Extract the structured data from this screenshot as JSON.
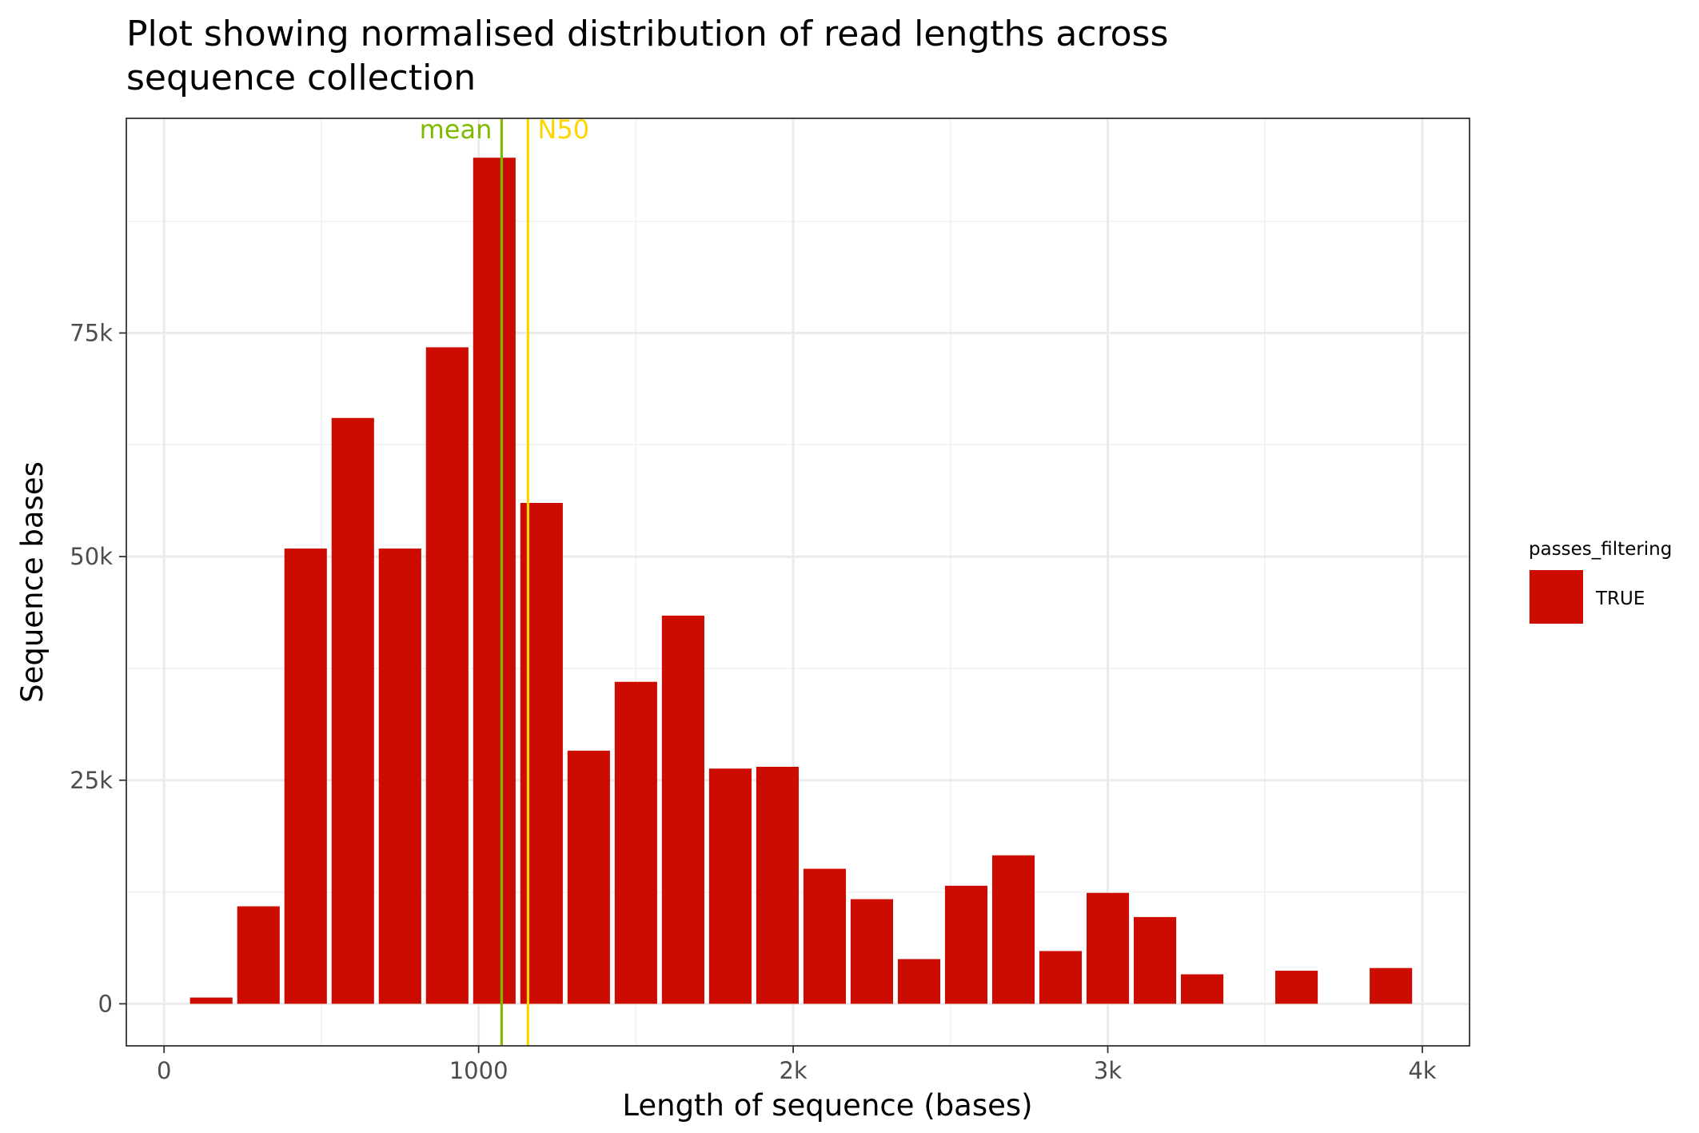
{
  "chart_data": {
    "type": "bar",
    "title_lines": [
      "Plot showing normalised distribution of read lengths across",
      "sequence collection"
    ],
    "xlabel": "Length of sequence (bases)",
    "ylabel": "Sequence bases",
    "xlim": [
      -120,
      4150
    ],
    "ylim": [
      -4700,
      99000
    ],
    "x_ticks": [
      {
        "value": 0,
        "label": "0"
      },
      {
        "value": 1000,
        "label": "1000"
      },
      {
        "value": 2000,
        "label": "2k"
      },
      {
        "value": 3000,
        "label": "3k"
      },
      {
        "value": 4000,
        "label": "4k"
      }
    ],
    "x_minor": [
      500,
      1500,
      2500,
      3500
    ],
    "y_ticks": [
      {
        "value": 0,
        "label": "0"
      },
      {
        "value": 25000,
        "label": "25k"
      },
      {
        "value": 50000,
        "label": "50k"
      },
      {
        "value": 75000,
        "label": "75k"
      }
    ],
    "y_minor": [
      12500,
      37500,
      62500,
      87500
    ],
    "bin_width": 150,
    "bar_color": "#CC0C00",
    "x": [
      150,
      300,
      450,
      600,
      750,
      900,
      1050,
      1200,
      1350,
      1500,
      1650,
      1800,
      1950,
      2100,
      2250,
      2400,
      2550,
      2700,
      2850,
      3000,
      3150,
      3300,
      3600,
      3900
    ],
    "values": [
      700,
      10900,
      50900,
      65500,
      50900,
      73400,
      94600,
      56000,
      28300,
      36000,
      43400,
      26300,
      26500,
      15100,
      11700,
      5000,
      13200,
      16600,
      5900,
      12400,
      9700,
      3300,
      3700,
      4000
    ],
    "reference_lines": [
      {
        "label": "mean",
        "value": 1073,
        "color": "#7FBA00"
      },
      {
        "label": "N50",
        "value": 1157,
        "color": "#FFD500"
      }
    ],
    "legend": {
      "title": "passes_filtering",
      "position": "right",
      "entries": [
        {
          "label": "TRUE",
          "color": "#CC0C00"
        }
      ]
    },
    "grid": true
  }
}
